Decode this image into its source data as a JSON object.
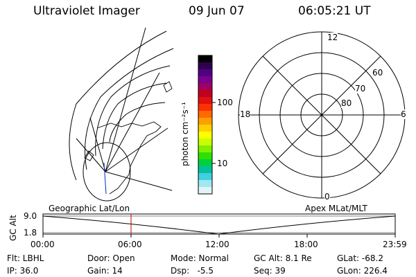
{
  "header": {
    "instrument": "Ultraviolet Imager",
    "date": "09 Jun 07",
    "time": "06:05:21 UT"
  },
  "colorbar": {
    "unit_label": "photon cm⁻²s⁻¹",
    "tick_100": "100",
    "tick_10": "10",
    "colors": [
      "#000000",
      "#300050",
      "#500080",
      "#7a0090",
      "#a00060",
      "#c00020",
      "#e01010",
      "#ff3000",
      "#ff6a00",
      "#ff9e00",
      "#ffd000",
      "#ffff00",
      "#c8ff00",
      "#80f000",
      "#30e000",
      "#00d040",
      "#00c0a0",
      "#40d0e0",
      "#a0e8f0",
      "#e0f4f8"
    ]
  },
  "polar_grid": {
    "label_12": "12",
    "label_6": "6",
    "label_18": "18",
    "label_0": "0",
    "lat_60": "60",
    "lat_70": "70",
    "lat_80": "80"
  },
  "altitude_plot": {
    "left_title": "Geographic Lat/Lon",
    "right_title": "Apex MLat/MLT",
    "y_axis_label": "GC Alt",
    "y_top": "9.0",
    "y_bottom": "1.8",
    "x_ticks": [
      "00:00",
      "06:00",
      "12:00",
      "18:00",
      "23:59"
    ],
    "current_time_fraction": 0.25,
    "line_color": "#c00000"
  },
  "status": {
    "filter": "Flt: LBHL",
    "ip": "IP: 36.0",
    "door": "Door: Open",
    "gain": "Gain: 14",
    "mode": "Mode: Normal",
    "dsp": "Dsp:   -5.5",
    "gc_alt": "GC Alt: 8.1 Re",
    "seq": "Seq: 39",
    "glat": "GLat: -68.2",
    "glon": "GLon: 226.4"
  }
}
